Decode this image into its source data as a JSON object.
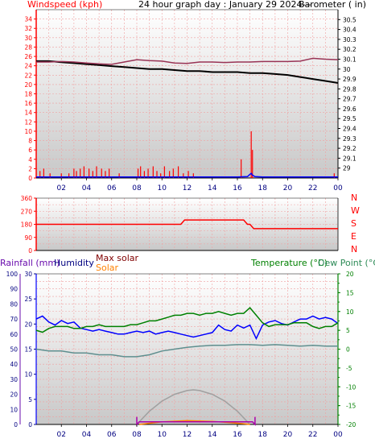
{
  "panel1": {
    "title": "24 hour graph day : January 29 2024---",
    "left_label": "Windspeed (kph)",
    "right_label": "Barometer ( in)",
    "left_ticks": [
      0,
      2,
      4,
      6,
      8,
      10,
      12,
      14,
      16,
      18,
      20,
      22,
      24,
      26,
      28,
      30,
      32,
      34
    ],
    "left_ticks_shown": [
      "0",
      "2",
      "4",
      "6",
      "8",
      "10",
      "12",
      "14",
      "16",
      "18",
      "20",
      "22",
      "24",
      "26",
      "28",
      "30",
      "32",
      "34"
    ],
    "right_ticks": [
      29.0,
      29.1,
      29.2,
      29.3,
      29.4,
      29.5,
      29.6,
      29.7,
      29.8,
      29.9,
      30.0,
      30.1,
      30.2,
      30.3,
      30.4,
      30.5
    ],
    "right_ticks_shown": [
      "29",
      "29.1",
      "29.2",
      "29.3",
      "29.4",
      "29.5",
      "29.6",
      "29.7",
      "29.8",
      "29.9",
      "30",
      "30.1",
      "30.2",
      "30.3",
      "30.4",
      "30.5"
    ]
  },
  "panel2": {
    "left_ticks": [
      0,
      90,
      180,
      270,
      360
    ],
    "left_ticks_shown": [
      "0",
      "90",
      "180",
      "270",
      "360"
    ],
    "compass": [
      "N",
      "W",
      "S",
      "E",
      "N"
    ]
  },
  "panel3": {
    "rain_label": "Rainfall (mm)",
    "humidity_label": "Humidity",
    "maxsolar_label": "Max solar",
    "solar_label": "Solar",
    "temp_label": "Temperature (°C)",
    "dew_label": "Dew Point (°C)",
    "rain_ticks_shown": [
      "0",
      "10",
      "20",
      "30",
      "40",
      "50",
      "60",
      "70",
      "80",
      "90",
      "100"
    ],
    "hum_ticks_shown": [
      "0",
      "5",
      "10",
      "15",
      "20",
      "25",
      "30"
    ],
    "temp_ticks_shown": [
      "20",
      "15",
      "10",
      "5",
      "0",
      "-5",
      "-10",
      "-15",
      "-20"
    ],
    "temp_ticks": [
      20,
      15,
      10,
      5,
      0,
      -5,
      -10,
      -15,
      -20
    ]
  },
  "x_labels": [
    "02",
    "04",
    "06",
    "08",
    "10",
    "12",
    "14",
    "16",
    "18",
    "20",
    "22",
    "00"
  ],
  "chart_data": [
    {
      "type": "line",
      "title": "24 hour graph day : January 29 2024---",
      "xlabel": "",
      "ylabel": "Windspeed (kph)",
      "y2label": "Barometer ( in)",
      "ylim": [
        0,
        36
      ],
      "y2lim": [
        28.9,
        30.6
      ],
      "x_range_hours": [
        0,
        24
      ],
      "series": [
        {
          "name": "Barometer",
          "axis": "right",
          "color": "#000000",
          "x": [
            0,
            1,
            2,
            3,
            4,
            5,
            6,
            7,
            8,
            9,
            10,
            11,
            12,
            13,
            14,
            15,
            16,
            17,
            18,
            19,
            20,
            21,
            22,
            23,
            24
          ],
          "y": [
            30.08,
            30.08,
            30.07,
            30.06,
            30.05,
            30.04,
            30.03,
            30.02,
            30.01,
            30.0,
            30.0,
            29.99,
            29.98,
            29.98,
            29.97,
            29.97,
            29.97,
            29.96,
            29.96,
            29.95,
            29.94,
            29.92,
            29.9,
            29.88,
            29.86
          ]
        },
        {
          "name": "",
          "axis": "left",
          "color": "#993355",
          "x": [
            0,
            1,
            2,
            3,
            4,
            5,
            6,
            7,
            8,
            9,
            10,
            11,
            12,
            13,
            14,
            15,
            16,
            17,
            18,
            19,
            20,
            21,
            22,
            23,
            24
          ],
          "y": [
            24.8,
            24.8,
            24.9,
            24.8,
            24.6,
            24.4,
            24.3,
            24.8,
            25.3,
            25.1,
            25.0,
            24.6,
            24.5,
            24.8,
            24.8,
            24.7,
            24.8,
            24.8,
            24.9,
            24.9,
            24.9,
            25.0,
            25.6,
            25.4,
            25.3
          ]
        },
        {
          "name": "",
          "axis": "left",
          "type": "bar",
          "color": "#ff0000",
          "x": [
            0.3,
            0.6,
            1.1,
            2.0,
            2.6,
            3.0,
            3.2,
            3.5,
            3.8,
            4.2,
            4.5,
            4.8,
            5.2,
            5.5,
            5.8,
            6.6,
            8.1,
            8.3,
            8.6,
            8.9,
            9.3,
            9.6,
            9.9,
            10.2,
            10.6,
            10.9,
            11.3,
            11.7,
            12.1,
            12.5,
            16.3,
            17.1,
            17.2,
            23.7
          ],
          "y": [
            1.5,
            2.0,
            1.0,
            1.0,
            1.0,
            2.0,
            1.5,
            2.0,
            2.5,
            2.0,
            1.5,
            2.5,
            2.0,
            1.5,
            2.0,
            1.0,
            2.0,
            2.5,
            1.5,
            2.0,
            2.5,
            1.5,
            1.0,
            2.5,
            1.5,
            2.0,
            2.5,
            1.0,
            1.5,
            1.0,
            4.0,
            10.0,
            6.0,
            1.0
          ]
        },
        {
          "name": "",
          "axis": "left",
          "color": "#0000ff",
          "x": [
            0,
            16,
            16.8,
            17.0,
            17.1,
            17.2,
            17.4,
            18,
            24
          ],
          "y": [
            0.2,
            0.2,
            0.3,
            0.8,
            1.0,
            0.6,
            0.3,
            0.2,
            0.2
          ]
        }
      ]
    },
    {
      "type": "line",
      "xlabel": "",
      "ylabel": "",
      "ylim": [
        0,
        360
      ],
      "x_range_hours": [
        0,
        24
      ],
      "series": [
        {
          "name": "",
          "color": "#ff0000",
          "x": [
            0,
            11.5,
            11.8,
            16.5,
            16.8,
            17.0,
            17.3,
            24
          ],
          "y": [
            180,
            180,
            210,
            210,
            180,
            180,
            150,
            150
          ]
        }
      ]
    },
    {
      "type": "line",
      "xlabel": "",
      "ylabel": "Rainfall (mm)",
      "y2label": "Temperature (°C)",
      "ylim": [
        0,
        100
      ],
      "y2lim": [
        -20,
        20
      ],
      "x_range_hours": [
        0,
        24
      ],
      "series": [
        {
          "name": "Humidity",
          "axis": "left",
          "color": "#0000ff",
          "x": [
            0,
            0.5,
            1,
            1.5,
            2,
            2.5,
            3,
            3.5,
            4,
            4.5,
            5,
            5.5,
            6,
            6.5,
            7,
            7.5,
            8,
            8.5,
            9,
            9.5,
            10,
            10.5,
            11,
            11.5,
            12,
            12.5,
            13,
            13.5,
            14,
            14.5,
            15,
            15.5,
            16,
            16.5,
            17,
            17.5,
            18,
            18.5,
            19,
            19.5,
            20,
            20.5,
            21,
            21.5,
            22,
            22.5,
            23,
            23.5,
            24
          ],
          "y": [
            70,
            72,
            68,
            66,
            69,
            67,
            68,
            64,
            63,
            62,
            63,
            62,
            61,
            60,
            60,
            61,
            62,
            61,
            62,
            60,
            61,
            62,
            61,
            60,
            59,
            58,
            59,
            60,
            61,
            66,
            63,
            62,
            66,
            64,
            66,
            57,
            66,
            68,
            69,
            67,
            66,
            68,
            70,
            70,
            72,
            70,
            71,
            70,
            67
          ]
        },
        {
          "name": "Temperature",
          "axis": "right",
          "color": "#008000",
          "x": [
            0,
            0.5,
            1,
            1.5,
            2,
            2.5,
            3,
            3.5,
            4,
            4.5,
            5,
            5.5,
            6,
            6.5,
            7,
            7.5,
            8,
            8.5,
            9,
            9.5,
            10,
            10.5,
            11,
            11.5,
            12,
            12.5,
            13,
            13.5,
            14,
            14.5,
            15,
            15.5,
            16,
            16.5,
            17,
            17.5,
            18,
            18.5,
            19,
            19.5,
            20,
            20.5,
            21,
            21.5,
            22,
            22.5,
            23,
            23.5,
            24
          ],
          "y": [
            5,
            4.5,
            5.5,
            6,
            6,
            6,
            5.5,
            5.5,
            6,
            6,
            6.5,
            6,
            6,
            6,
            6,
            6.5,
            6.5,
            7,
            7.5,
            7.5,
            8,
            8.5,
            9,
            9,
            9.5,
            9.5,
            9,
            9.5,
            9.5,
            10,
            9.5,
            9,
            9.5,
            9.5,
            11,
            9,
            7,
            6,
            6.5,
            6.5,
            6.5,
            7,
            7,
            7,
            6,
            5.5,
            6,
            6,
            7
          ]
        },
        {
          "name": "Dew Point",
          "axis": "right",
          "color": "#5f8f8f",
          "x": [
            0,
            1,
            2,
            3,
            4,
            5,
            6,
            7,
            8,
            9,
            10,
            11,
            12,
            13,
            14,
            15,
            16,
            17,
            18,
            19,
            20,
            21,
            22,
            23,
            24
          ],
          "y": [
            0,
            -0.5,
            -0.5,
            -1,
            -1,
            -1.5,
            -1.5,
            -2,
            -2,
            -1.5,
            -0.5,
            0,
            0.5,
            0.8,
            1,
            1,
            1.2,
            1.2,
            1,
            1.2,
            1,
            0.8,
            1,
            0.8,
            0.8
          ]
        },
        {
          "name": "Max solar",
          "axis": "right",
          "color": "#a0a0a0",
          "x": [
            8.0,
            9,
            10,
            11,
            12,
            12.5,
            13,
            14,
            15,
            16,
            17.0
          ],
          "y": [
            -20,
            -16.5,
            -13.8,
            -12,
            -11,
            -10.8,
            -11,
            -12,
            -13.8,
            -16.5,
            -20
          ]
        },
        {
          "name": "Solar",
          "axis": "right",
          "color": "#ff8000",
          "x": [
            8.2,
            10,
            12,
            14,
            15,
            16.5,
            17
          ],
          "y": [
            -20,
            -19.3,
            -19.0,
            -19.2,
            -19.4,
            -19.8,
            -20
          ]
        },
        {
          "name": "",
          "axis": "right",
          "color": "#aa00aa",
          "x": [
            8.0,
            8.0,
            8.2,
            17.2,
            17.4,
            17.4
          ],
          "y": [
            -18,
            -20,
            -19.3,
            -19.3,
            -20,
            -18
          ]
        }
      ]
    }
  ]
}
